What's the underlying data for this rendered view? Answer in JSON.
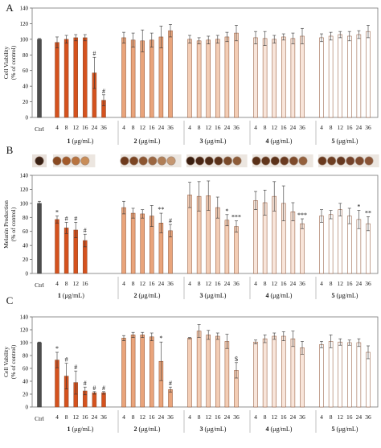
{
  "figure": {
    "panel_labels": [
      "A",
      "B",
      "C"
    ],
    "well_photos_note": "Wells photographs for Ctrl and compounds 1-5 above panel B"
  },
  "chart_data": [
    {
      "type": "bar",
      "panel": "A",
      "ylabel": "Cell Viability (% of control)",
      "ylim": [
        0,
        140
      ],
      "yticks": [
        0,
        20,
        40,
        60,
        80,
        100,
        120,
        140
      ],
      "grid": false,
      "control": {
        "label": "Ctrl",
        "value": 100,
        "err": 1
      },
      "x_ticks": [
        "4",
        "8",
        "12",
        "16",
        "24",
        "36"
      ],
      "groups": [
        {
          "name": "1",
          "unit": "(μg/mL)",
          "color": "#d4521e",
          "values": [
            96,
            100,
            102,
            102,
            57,
            22
          ],
          "errors": [
            7,
            5,
            4,
            4,
            20,
            7
          ],
          "annotations": [
            "",
            "",
            "",
            "",
            "#",
            "#"
          ]
        },
        {
          "name": "2",
          "unit": "(μg/mL)",
          "color": "#e9a47b",
          "values": [
            102,
            99,
            98,
            99,
            103,
            111
          ],
          "errors": [
            7,
            9,
            14,
            9,
            14,
            8
          ],
          "annotations": [
            "",
            "",
            "",
            "",
            "",
            ""
          ]
        },
        {
          "name": "3",
          "unit": "(μg/mL)",
          "color": "#f3cdb5",
          "values": [
            100,
            98,
            99,
            100,
            103,
            108
          ],
          "errors": [
            5,
            4,
            5,
            5,
            6,
            10
          ],
          "annotations": [
            "",
            "",
            "",
            "",
            "",
            ""
          ]
        },
        {
          "name": "4",
          "unit": "(μg/mL)",
          "color": "#f8e5da",
          "values": [
            102,
            101,
            100,
            103,
            101,
            104
          ],
          "errors": [
            8,
            9,
            5,
            4,
            7,
            10
          ],
          "annotations": [
            "",
            "",
            "",
            "",
            "",
            ""
          ]
        },
        {
          "name": "5",
          "unit": "(μg/mL)",
          "color": "#ffffff",
          "values": [
            102,
            104,
            106,
            104,
            106,
            110
          ],
          "errors": [
            5,
            5,
            4,
            6,
            5,
            8
          ],
          "annotations": [
            "",
            "",
            "",
            "",
            "",
            ""
          ]
        }
      ]
    },
    {
      "type": "bar",
      "panel": "B",
      "ylabel": "Melanin Production (% of control)",
      "ylim": [
        0,
        140
      ],
      "yticks": [
        0,
        20,
        40,
        60,
        80,
        100,
        120,
        140
      ],
      "grid": false,
      "control": {
        "label": "Ctrl",
        "value": 100,
        "err": 3
      },
      "groups": [
        {
          "name": "1",
          "unit": "(μg/mL)",
          "color": "#d4521e",
          "x_ticks": [
            "4",
            "8",
            "12",
            "16"
          ],
          "values": [
            77,
            65,
            62,
            47
          ],
          "errors": [
            5,
            8,
            11,
            9
          ],
          "annotations": [
            "*",
            "#",
            "#",
            "#"
          ]
        },
        {
          "name": "2",
          "unit": "(μg/mL)",
          "color": "#e9a47b",
          "x_ticks": [
            "4",
            "8",
            "12",
            "16",
            "24",
            "36"
          ],
          "values": [
            94,
            86,
            85,
            82,
            72,
            61
          ],
          "errors": [
            9,
            7,
            6,
            15,
            14,
            9
          ],
          "annotations": [
            "",
            "",
            "",
            "",
            "**",
            "#"
          ]
        },
        {
          "name": "3",
          "unit": "(μg/mL)",
          "color": "#f3cdb5",
          "x_ticks": [
            "4",
            "8",
            "12",
            "16",
            "24",
            "36"
          ],
          "values": [
            112,
            110,
            111,
            94,
            76,
            67
          ],
          "errors": [
            18,
            21,
            21,
            15,
            8,
            8
          ],
          "annotations": [
            "",
            "",
            "",
            "",
            "*",
            "***"
          ]
        },
        {
          "name": "4",
          "unit": "(μg/mL)",
          "color": "#f8e5da",
          "x_ticks": [
            "4",
            "8",
            "12",
            "16",
            "24",
            "36"
          ],
          "values": [
            104,
            101,
            110,
            100,
            88,
            71
          ],
          "errors": [
            13,
            18,
            21,
            25,
            13,
            7
          ],
          "annotations": [
            "",
            "",
            "",
            "",
            "",
            "***"
          ]
        },
        {
          "name": "5",
          "unit": "(μg/mL)",
          "color": "#ffffff",
          "x_ticks": [
            "4",
            "8",
            "12",
            "16",
            "24",
            "36"
          ],
          "values": [
            82,
            84,
            91,
            82,
            77,
            71
          ],
          "errors": [
            9,
            6,
            9,
            11,
            13,
            10
          ],
          "annotations": [
            "",
            "",
            "",
            "",
            "*",
            "**"
          ]
        }
      ]
    },
    {
      "type": "bar",
      "panel": "C",
      "ylabel": "Cell Vability (% of control)",
      "ylim": [
        0,
        140
      ],
      "yticks": [
        0,
        20,
        40,
        60,
        80,
        100,
        120,
        140
      ],
      "grid": false,
      "control": {
        "label": "Ctrl",
        "value": 100,
        "err": 1
      },
      "x_ticks": [
        "4",
        "8",
        "12",
        "16",
        "24",
        "36"
      ],
      "groups": [
        {
          "name": "1",
          "unit": "(μg/mL)",
          "color": "#d4521e",
          "values": [
            73,
            48,
            38,
            25,
            22,
            22
          ],
          "errors": [
            12,
            20,
            18,
            6,
            2,
            2
          ],
          "annotations": [
            "*",
            "#",
            "#",
            "#",
            "#",
            "#"
          ]
        },
        {
          "name": "2",
          "unit": "(μg/mL)",
          "color": "#e9a47b",
          "values": [
            107,
            112,
            112,
            109,
            71,
            27
          ],
          "errors": [
            4,
            4,
            4,
            6,
            30,
            4
          ],
          "annotations": [
            "",
            "",
            "",
            "",
            "*",
            "#"
          ]
        },
        {
          "name": "3",
          "unit": "(μg/mL)",
          "color": "#f3cdb5",
          "values": [
            107,
            118,
            112,
            110,
            102,
            57
          ],
          "errors": [
            1,
            10,
            7,
            5,
            11,
            12
          ],
          "annotations": [
            "",
            "",
            "",
            "",
            "",
            "$"
          ]
        },
        {
          "name": "4",
          "unit": "(μg/mL)",
          "color": "#f8e5da",
          "values": [
            101,
            106,
            110,
            110,
            106,
            92
          ],
          "errors": [
            3,
            6,
            5,
            7,
            12,
            10
          ],
          "annotations": [
            "",
            "",
            "",
            "",
            "",
            ""
          ]
        },
        {
          "name": "5",
          "unit": "(μg/mL)",
          "color": "#ffffff",
          "values": [
            97,
            102,
            101,
            100,
            100,
            85
          ],
          "errors": [
            5,
            10,
            5,
            4,
            6,
            10
          ],
          "annotations": [
            "",
            "",
            "",
            "",
            "",
            ""
          ]
        }
      ]
    }
  ]
}
